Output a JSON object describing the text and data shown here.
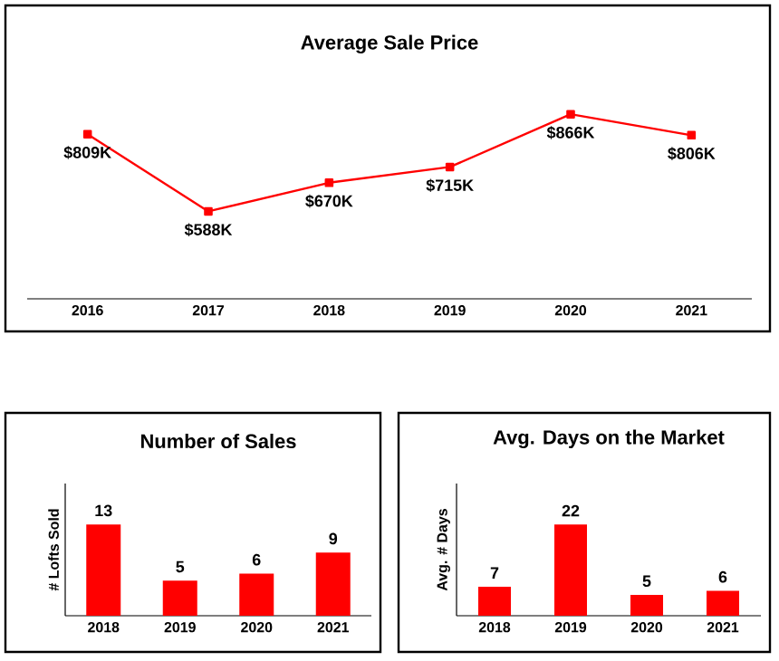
{
  "chart_data": [
    {
      "type": "line",
      "title": "Average Sale Price",
      "categories": [
        "2016",
        "2017",
        "2018",
        "2019",
        "2020",
        "2021"
      ],
      "values": [
        809,
        588,
        670,
        715,
        866,
        806
      ],
      "value_labels": [
        "$809K",
        "$588K",
        "$670K",
        "$715K",
        "$866K",
        "$806K"
      ],
      "color": "#ff0000",
      "marker": "square",
      "tick_labels": "x"
    },
    {
      "type": "bar",
      "title": "Number of Sales",
      "ylabel": "# Lofts Sold",
      "categories": [
        "2018",
        "2019",
        "2020",
        "2021"
      ],
      "values": [
        13,
        5,
        6,
        9
      ],
      "color": "#ff0000",
      "data_labels": true,
      "tick_labels": "x"
    },
    {
      "type": "bar",
      "title": "Avg. Days on the Market",
      "ylabel": "Avg. # Days",
      "categories": [
        "2018",
        "2019",
        "2020",
        "2021"
      ],
      "values": [
        7,
        22,
        5,
        6
      ],
      "color": "#ff0000",
      "data_labels": true,
      "tick_labels": "x"
    }
  ]
}
